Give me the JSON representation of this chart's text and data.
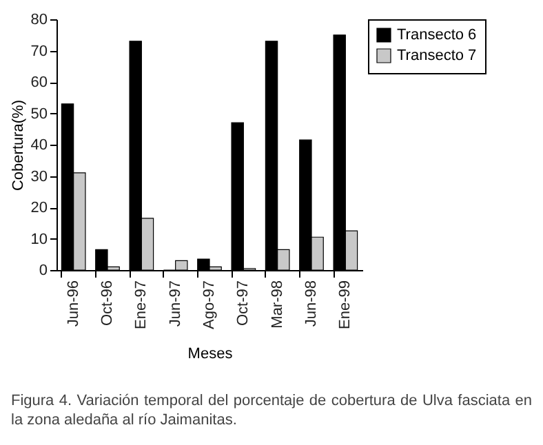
{
  "chart_data": {
    "type": "bar",
    "xlabel": "Meses",
    "ylabel": "Cobertura(%)",
    "categories": [
      "Jun-96",
      "Oct-96",
      "Ene-97",
      "Jun-97",
      "Ago-97",
      "Oct-97",
      "Mar-98",
      "Jun-98",
      "Ene-99"
    ],
    "series": [
      {
        "name": "Transecto 6",
        "color": "#000000",
        "values": [
          53,
          6.5,
          73,
          0,
          3.5,
          47,
          73,
          41.5,
          75
        ]
      },
      {
        "name": "Transecto 7",
        "color": "#c8c8c8",
        "values": [
          31,
          1,
          16.5,
          3,
          1,
          0.5,
          6.5,
          10.5,
          12.5
        ]
      }
    ],
    "ylim": [
      0,
      80
    ],
    "yticks": [
      0,
      10,
      20,
      30,
      40,
      50,
      60,
      70,
      80
    ],
    "grid": false,
    "legend": "right",
    "annotations": [
      "Figura 4. Variación temporal del porcentaje de cobertura de Ulva fasciata en la zona aledaña al río Jaimanitas."
    ]
  }
}
